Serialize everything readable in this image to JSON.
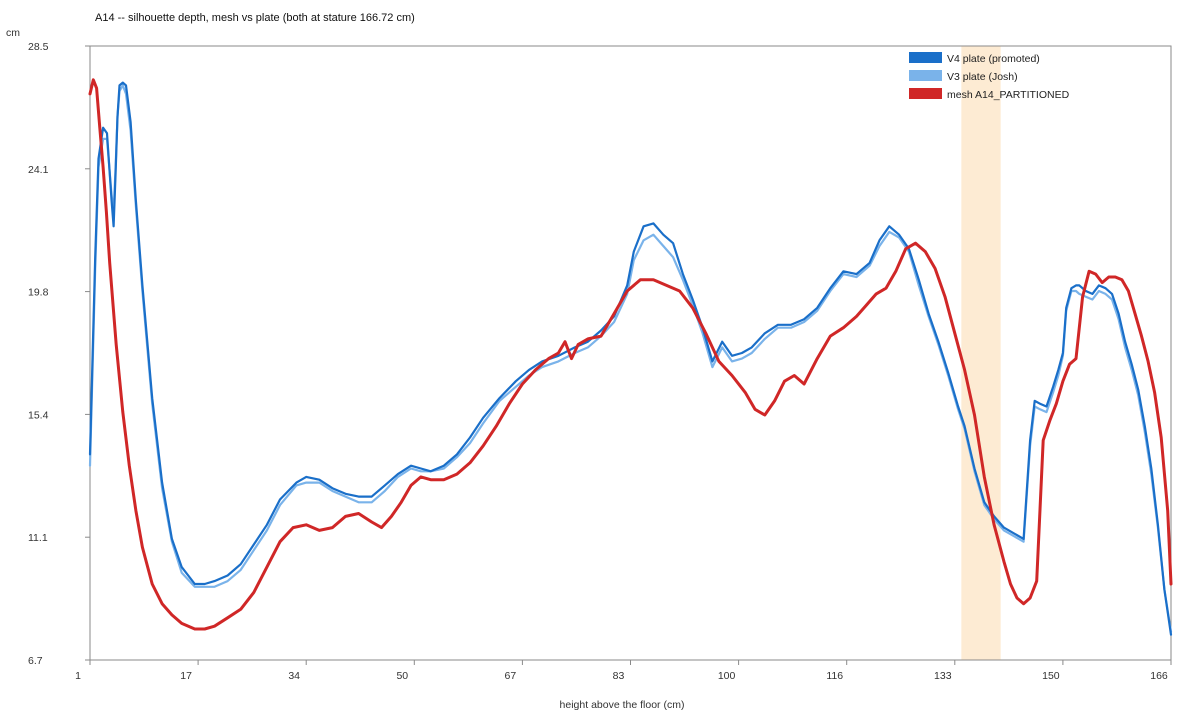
{
  "chart_data": {
    "type": "line",
    "title": "A14 -- silhouette depth, mesh vs plate (both at stature 166.72 cm)",
    "xlabel": "height above the floor (cm)",
    "ylabel": "cm",
    "xlim": [
      1,
      166
    ],
    "ylim": [
      6.7,
      28.5
    ],
    "x_ticks": [
      "1",
      "17",
      "34",
      "50",
      "67",
      "83",
      "100",
      "116",
      "133",
      "150",
      "166"
    ],
    "y_ticks": [
      "6.7",
      "11.1",
      "15.4",
      "19.8",
      "24.1",
      "28.5"
    ],
    "grid": false,
    "legend_position": "top-right",
    "highlight_band": {
      "x_start": 134,
      "x_end": 140,
      "color": "#fdebd3"
    },
    "series": [
      {
        "name": "V4 plate (promoted)",
        "color": "#1a6fc9",
        "x": [
          1,
          1.8,
          2.3,
          3.0,
          3.6,
          4.3,
          4.6,
          4.9,
          5.2,
          5.5,
          6.0,
          6.5,
          7.2,
          8.0,
          9.0,
          10.5,
          12.0,
          13.5,
          15.0,
          17.0,
          18.5,
          20.0,
          22.0,
          24.0,
          26.0,
          28.0,
          30.0,
          32.5,
          34.0,
          36.0,
          38.0,
          40.0,
          42.0,
          44.0,
          46.0,
          48.0,
          50.0,
          51.5,
          53.0,
          55.0,
          57.0,
          59.0,
          61.0,
          63.5,
          66.0,
          68.0,
          70.0,
          72.5,
          75.0,
          77.0,
          79.0,
          81.0,
          83.0,
          84.0,
          85.5,
          87.0,
          88.5,
          90.0,
          91.5,
          93.0,
          94.5,
          96.0,
          97.5,
          99.0,
          100.5,
          102.0,
          104.0,
          106.0,
          108.0,
          110.0,
          112.0,
          114.0,
          116.0,
          118.0,
          120.0,
          121.5,
          123.0,
          124.5,
          126.0,
          127.5,
          129.0,
          130.5,
          132.0,
          133.5,
          134.5,
          136.0,
          137.5,
          139.0,
          140.5,
          142.0,
          143.5,
          144.5,
          145.2,
          146.0,
          147.0,
          148.0,
          148.8,
          149.5,
          150.0,
          150.8,
          151.5,
          152.0,
          153.0,
          154.0,
          155.0,
          156.0,
          157.0,
          158.0,
          159.0,
          160.0,
          161.0,
          162.0,
          163.0,
          164.0,
          165.0,
          166.0
        ],
        "values": [
          14.0,
          21.0,
          24.5,
          25.6,
          25.4,
          23.0,
          22.1,
          24.0,
          26.0,
          27.1,
          27.2,
          27.1,
          25.8,
          23.0,
          20.0,
          16.0,
          13.0,
          11.0,
          10.0,
          9.4,
          9.4,
          9.5,
          9.7,
          10.1,
          10.8,
          11.5,
          12.4,
          13.0,
          13.2,
          13.1,
          12.8,
          12.6,
          12.5,
          12.5,
          12.9,
          13.3,
          13.6,
          13.5,
          13.4,
          13.6,
          14.0,
          14.6,
          15.3,
          16.0,
          16.6,
          17.0,
          17.3,
          17.5,
          17.8,
          18.0,
          18.4,
          18.9,
          20.0,
          21.2,
          22.1,
          22.2,
          21.8,
          21.5,
          20.4,
          19.5,
          18.5,
          17.3,
          18.0,
          17.5,
          17.6,
          17.8,
          18.3,
          18.6,
          18.6,
          18.8,
          19.2,
          19.9,
          20.5,
          20.4,
          20.8,
          21.6,
          22.1,
          21.8,
          21.3,
          20.2,
          19.0,
          18.0,
          16.9,
          15.7,
          15.0,
          13.5,
          12.3,
          11.8,
          11.4,
          11.2,
          11.0,
          14.5,
          15.9,
          15.8,
          15.7,
          16.4,
          17.0,
          17.6,
          19.2,
          19.9,
          20.0,
          20.0,
          19.8,
          19.7,
          20.0,
          19.9,
          19.7,
          19.0,
          18.0,
          17.2,
          16.3,
          15.0,
          13.5,
          11.5,
          9.2,
          7.6
        ]
      },
      {
        "name": "V3 plate (Josh)",
        "color": "#7ab3ea",
        "x": [
          1,
          1.8,
          2.3,
          3.0,
          3.6,
          4.3,
          4.6,
          4.9,
          5.2,
          5.5,
          6.0,
          6.5,
          7.2,
          8.0,
          9.0,
          10.5,
          12.0,
          13.5,
          15.0,
          17.0,
          18.5,
          20.0,
          22.0,
          24.0,
          26.0,
          28.0,
          30.0,
          32.5,
          34.0,
          36.0,
          38.0,
          40.0,
          42.0,
          44.0,
          46.0,
          48.0,
          50.0,
          51.5,
          53.0,
          55.0,
          57.0,
          59.0,
          61.0,
          63.5,
          66.0,
          68.0,
          70.0,
          72.5,
          75.0,
          77.0,
          79.0,
          81.0,
          83.0,
          84.0,
          85.5,
          87.0,
          88.5,
          90.0,
          91.5,
          93.0,
          94.5,
          96.0,
          97.5,
          99.0,
          100.5,
          102.0,
          104.0,
          106.0,
          108.0,
          110.0,
          112.0,
          114.0,
          116.0,
          118.0,
          120.0,
          121.5,
          123.0,
          124.5,
          126.0,
          127.5,
          129.0,
          130.5,
          132.0,
          133.5,
          134.5,
          136.0,
          137.5,
          139.0,
          140.5,
          142.0,
          143.5,
          144.5,
          145.2,
          146.0,
          147.0,
          148.0,
          148.8,
          149.5,
          150.0,
          150.8,
          151.5,
          152.0,
          153.0,
          154.0,
          155.0,
          156.0,
          157.0,
          158.0,
          159.0,
          160.0,
          161.0,
          162.0,
          163.0,
          164.0,
          165.0,
          166.0
        ],
        "values": [
          13.6,
          20.6,
          24.2,
          25.2,
          25.2,
          23.2,
          22.6,
          24.2,
          26.0,
          26.9,
          27.1,
          26.8,
          25.5,
          22.8,
          19.8,
          15.8,
          12.8,
          10.9,
          9.8,
          9.3,
          9.3,
          9.3,
          9.5,
          9.9,
          10.6,
          11.3,
          12.2,
          12.9,
          13.0,
          13.0,
          12.7,
          12.5,
          12.3,
          12.3,
          12.7,
          13.2,
          13.5,
          13.4,
          13.4,
          13.5,
          13.9,
          14.4,
          15.1,
          15.9,
          16.4,
          16.8,
          17.1,
          17.3,
          17.6,
          17.8,
          18.2,
          18.7,
          19.7,
          20.9,
          21.6,
          21.8,
          21.4,
          21.0,
          20.2,
          19.3,
          18.3,
          17.1,
          17.8,
          17.3,
          17.4,
          17.6,
          18.1,
          18.5,
          18.5,
          18.7,
          19.1,
          19.8,
          20.4,
          20.3,
          20.7,
          21.4,
          21.9,
          21.7,
          21.2,
          20.0,
          18.9,
          17.9,
          16.8,
          15.6,
          14.9,
          13.4,
          12.2,
          11.7,
          11.3,
          11.1,
          10.9,
          14.3,
          15.7,
          15.6,
          15.5,
          16.2,
          16.8,
          17.5,
          19.1,
          19.8,
          19.8,
          19.7,
          19.6,
          19.5,
          19.8,
          19.7,
          19.5,
          18.8,
          17.8,
          17.0,
          16.1,
          14.8,
          13.3,
          11.4,
          9.2,
          7.7
        ]
      },
      {
        "name": "mesh A14_PARTITIONED",
        "color": "#d02727",
        "x": [
          1,
          1.5,
          2.0,
          2.5,
          3.0,
          3.5,
          4.0,
          5.0,
          6.0,
          7.0,
          8.0,
          9.0,
          10.5,
          12.0,
          13.5,
          15.0,
          17.0,
          18.5,
          20.0,
          22.0,
          24.0,
          26.0,
          28.0,
          30.0,
          32.0,
          34.0,
          36.0,
          38.0,
          40.0,
          42.0,
          44.0,
          45.5,
          47.0,
          48.5,
          50.0,
          51.5,
          53.0,
          55.0,
          57.0,
          59.0,
          61.0,
          63.0,
          65.0,
          67.0,
          69.0,
          71.0,
          72.5,
          73.5,
          74.5,
          75.5,
          77.0,
          79.0,
          81.0,
          83.0,
          85.0,
          87.0,
          89.0,
          91.0,
          93.0,
          95.0,
          97.0,
          99.0,
          101.0,
          102.5,
          104.0,
          105.5,
          107.0,
          108.5,
          110.0,
          112.0,
          114.0,
          116.0,
          118.0,
          119.5,
          121.0,
          122.5,
          124.0,
          125.5,
          127.0,
          128.5,
          130.0,
          131.5,
          133.0,
          134.5,
          136.0,
          137.5,
          139.0,
          140.5,
          141.5,
          142.5,
          143.5,
          144.5,
          145.5,
          146.5,
          147.5,
          148.5,
          149.5,
          150.5,
          151.5,
          152.5,
          153.5,
          154.5,
          155.5,
          156.5,
          157.5,
          158.5,
          159.5,
          160.5,
          161.5,
          162.5,
          163.5,
          164.5,
          165.5,
          166.0
        ],
        "values": [
          26.8,
          27.3,
          27.0,
          25.6,
          24.2,
          22.6,
          20.8,
          17.9,
          15.5,
          13.6,
          12.0,
          10.7,
          9.4,
          8.7,
          8.3,
          8.0,
          7.8,
          7.8,
          7.9,
          8.2,
          8.5,
          9.1,
          10.0,
          10.9,
          11.4,
          11.5,
          11.3,
          11.4,
          11.8,
          11.9,
          11.6,
          11.4,
          11.8,
          12.3,
          12.9,
          13.2,
          13.1,
          13.1,
          13.3,
          13.7,
          14.3,
          15.0,
          15.8,
          16.5,
          17.0,
          17.4,
          17.6,
          18.0,
          17.4,
          17.9,
          18.1,
          18.2,
          19.0,
          19.8,
          20.2,
          20.2,
          20.0,
          19.8,
          19.2,
          18.3,
          17.3,
          16.8,
          16.2,
          15.6,
          15.4,
          15.9,
          16.6,
          16.8,
          16.5,
          17.4,
          18.2,
          18.5,
          18.9,
          19.3,
          19.7,
          19.9,
          20.5,
          21.3,
          21.5,
          21.2,
          20.6,
          19.6,
          18.3,
          17.0,
          15.4,
          13.2,
          11.5,
          10.2,
          9.4,
          8.9,
          8.7,
          8.9,
          9.5,
          14.5,
          15.2,
          15.8,
          16.6,
          17.2,
          17.4,
          19.6,
          20.5,
          20.4,
          20.1,
          20.3,
          20.3,
          20.2,
          19.8,
          19.0,
          18.2,
          17.3,
          16.2,
          14.6,
          12.0,
          9.4
        ]
      }
    ]
  }
}
